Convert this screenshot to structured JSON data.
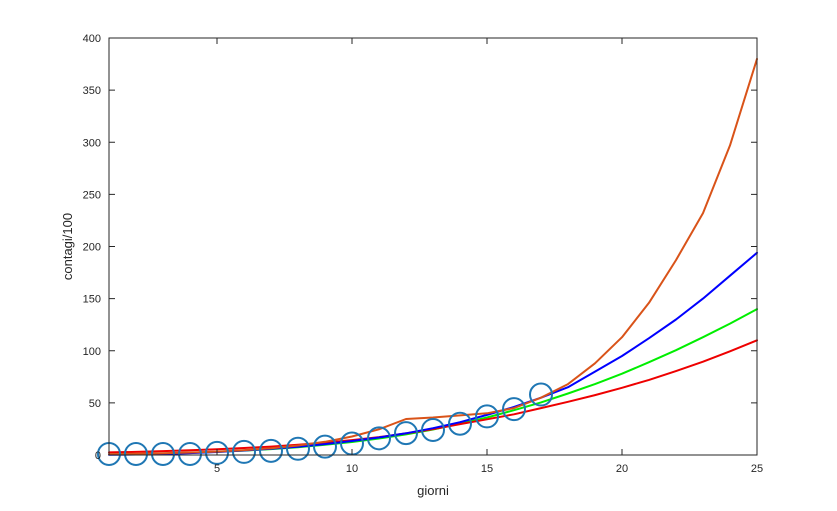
{
  "chart_data": {
    "type": "line",
    "title": "",
    "xlabel": "giorni",
    "ylabel": "contagi/100",
    "xlim": [
      1,
      25
    ],
    "ylim": [
      0,
      400
    ],
    "xticks": [
      5,
      10,
      15,
      20,
      25
    ],
    "yticks": [
      0,
      50,
      100,
      150,
      200,
      250,
      300,
      350,
      400
    ],
    "grid": false,
    "legend": "none",
    "box": true,
    "series": [
      {
        "style": "markers",
        "marker": "circle",
        "color": "#1f77b4",
        "x": [
          1,
          2,
          3,
          4,
          5,
          6,
          7,
          8,
          9,
          10,
          11,
          12,
          13,
          14,
          15,
          16,
          17
        ],
        "y": [
          1,
          1,
          1,
          1,
          2,
          3,
          4,
          6,
          8,
          11,
          16,
          21,
          24,
          30,
          37,
          44,
          58
        ]
      },
      {
        "style": "line",
        "color": "#d95319",
        "x": [
          1,
          2,
          3,
          4,
          5,
          6,
          7,
          8,
          9,
          10,
          11,
          12,
          13,
          14,
          15,
          16,
          17,
          18,
          19,
          20,
          21,
          22,
          23,
          24,
          25
        ],
        "y": [
          0.8,
          1.2,
          1.7,
          2.4,
          3.3,
          4.7,
          6.5,
          9.1,
          12.7,
          17.7,
          24.7,
          34.5,
          36.0,
          38.0,
          40.0,
          45.0,
          55.0,
          68.0,
          88.0,
          113.0,
          146.0,
          187.0,
          232.0,
          297.0,
          380.0
        ]
      },
      {
        "style": "line",
        "color": "#0000ff",
        "x": [
          1,
          2,
          3,
          4,
          5,
          6,
          7,
          8,
          9,
          10,
          11,
          12,
          13,
          14,
          15,
          16,
          17,
          18,
          19,
          20,
          21,
          22,
          23,
          24,
          25
        ],
        "y": [
          0.2,
          0.5,
          1.0,
          1.8,
          2.9,
          4.3,
          6.0,
          8.0,
          10.5,
          13.4,
          16.8,
          20.8,
          25.7,
          31.5,
          38.5,
          46.0,
          55.0,
          65.0,
          80.0,
          95.0,
          112.0,
          130.0,
          150.0,
          172.0,
          194.0
        ]
      },
      {
        "style": "line",
        "color": "#00ee00",
        "x": [
          1,
          2,
          3,
          4,
          5,
          6,
          7,
          8,
          9,
          10,
          11,
          12,
          13,
          14,
          15,
          16,
          17,
          18,
          19,
          20,
          21,
          22,
          23,
          24,
          25
        ],
        "y": [
          0.5,
          0.9,
          1.4,
          2.1,
          3.0,
          4.2,
          5.7,
          7.5,
          9.8,
          12.5,
          15.8,
          19.8,
          24.5,
          30.0,
          36.0,
          43.0,
          50.5,
          59.0,
          68.0,
          78.0,
          89.0,
          100.5,
          113.0,
          126.0,
          140.0
        ]
      },
      {
        "style": "line",
        "color": "#ee0000",
        "x": [
          1,
          2,
          3,
          4,
          5,
          6,
          7,
          8,
          9,
          10,
          11,
          12,
          13,
          14,
          15,
          16,
          17,
          18,
          19,
          20,
          21,
          22,
          23,
          24,
          25
        ],
        "y": [
          2.5,
          3.0,
          3.7,
          4.5,
          5.5,
          6.7,
          8.1,
          9.8,
          11.9,
          14.3,
          17.2,
          20.7,
          24.8,
          29.6,
          34.2,
          39.0,
          45.0,
          51.0,
          57.5,
          64.5,
          72.0,
          80.5,
          89.5,
          99.5,
          110.0
        ]
      }
    ]
  }
}
